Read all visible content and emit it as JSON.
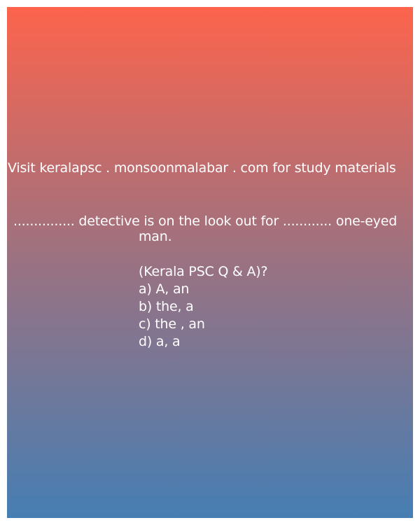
{
  "source": "Visit keralapsc . monsoonmalabar . com for study materials",
  "question": {
    "line1": "............... detective is on the look out for ............ one-eyed",
    "line2": "man.",
    "subtitle": "(Kerala PSC Q & A)?",
    "options": [
      "a) A, an",
      "b) the, a",
      "c) the , an",
      "d) a, a"
    ]
  }
}
